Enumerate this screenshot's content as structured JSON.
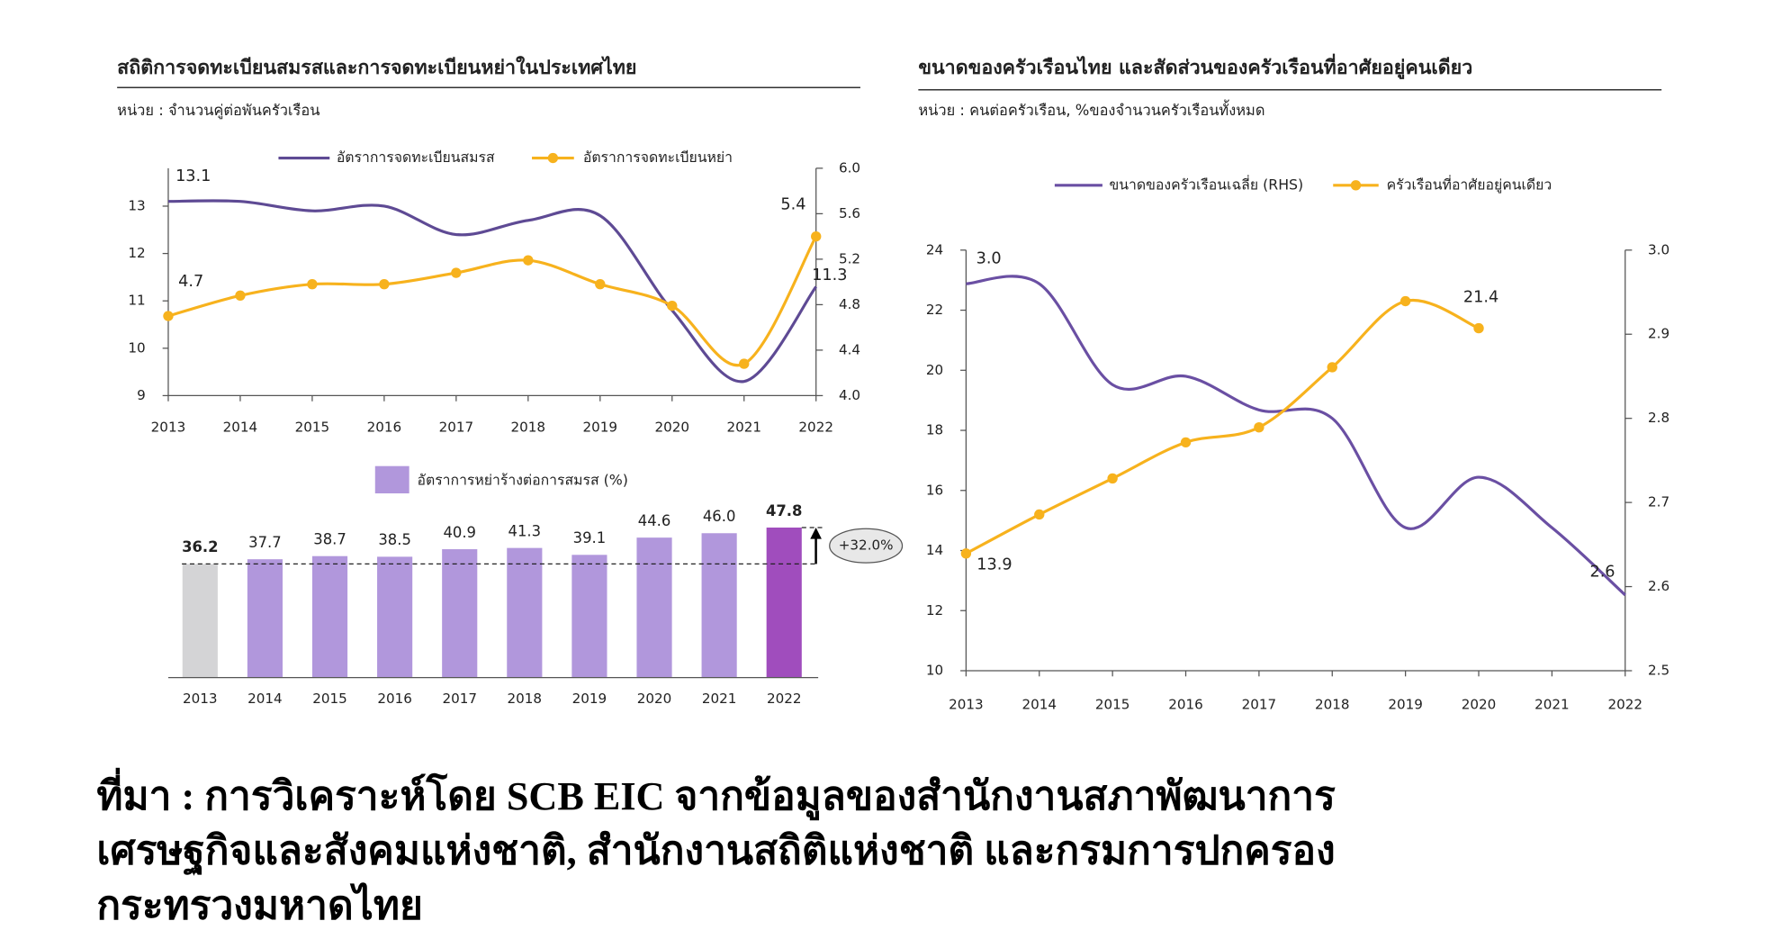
{
  "chart_data": [
    {
      "type": "line",
      "title": "สถิติการจดทะเบียนสมรสและการจดทะเบียนหย่าในประเทศไทย",
      "subtitle": "หน่วย : จำนวนคู่ต่อพันครัวเรือน",
      "categories": [
        "2013",
        "2014",
        "2015",
        "2016",
        "2017",
        "2018",
        "2019",
        "2020",
        "2021",
        "2022"
      ],
      "series": [
        {
          "name": "อัตราการจดทะเบียนสมรส",
          "color": "#5e4a94",
          "values": [
            13.1,
            13.1,
            12.9,
            13.0,
            12.4,
            12.7,
            12.8,
            10.8,
            9.3,
            11.3
          ],
          "value_labels": [
            "13.1",
            null,
            null,
            null,
            null,
            null,
            null,
            null,
            null,
            "11.3"
          ],
          "markers": false
        },
        {
          "name": "อัตราการจดทะเบียนหย่า",
          "color": "#f7b21d",
          "axis": "y2",
          "values": [
            4.7,
            4.88,
            4.98,
            4.98,
            5.08,
            5.19,
            4.98,
            4.79,
            4.28,
            5.4
          ],
          "value_labels": [
            "4.7",
            null,
            null,
            null,
            null,
            null,
            null,
            null,
            null,
            "5.4"
          ],
          "markers": true
        }
      ],
      "ylim": [
        9,
        13.8
      ],
      "yticks": [
        9,
        10,
        11,
        12,
        13
      ],
      "y2lim": [
        4.0,
        6.0
      ],
      "y2ticks": [
        {
          "value": 4.0,
          "label": "4.0"
        },
        4.4,
        4.8,
        5.2,
        5.6,
        {
          "value": 6.0,
          "label": "6.0"
        }
      ],
      "grid": false,
      "legend": "top"
    },
    {
      "type": "bar",
      "categories": [
        "2013",
        "2014",
        "2015",
        "2016",
        "2017",
        "2018",
        "2019",
        "2020",
        "2021",
        "2022"
      ],
      "series": [
        {
          "name": "อัตราการหย่าร้างต่อการสมรส (%)",
          "color": "#b197dc",
          "values": [
            36.2,
            37.7,
            38.7,
            38.5,
            40.9,
            41.3,
            39.1,
            44.6,
            46.0,
            47.8
          ],
          "value_labels": [
            "36.2",
            "37.7",
            "38.7",
            "38.5",
            "40.9",
            "41.3",
            "39.1",
            "44.6",
            "46.0",
            "47.8"
          ],
          "colors": [
            "#d4d4d6",
            "#b197dc",
            "#b197dc",
            "#b197dc",
            "#b197dc",
            "#b197dc",
            "#b197dc",
            "#b197dc",
            "#b197dc",
            "#a04dbd"
          ]
        }
      ],
      "annotation": "+32.0%",
      "legend": "top"
    },
    {
      "type": "line",
      "title": "ขนาดของครัวเรือนไทย และสัดส่วนของครัวเรือนที่อาศัยอยู่คนเดียว",
      "subtitle": "หน่วย : คนต่อครัวเรือน, %ของจำนวนครัวเรือนทั้งหมด",
      "categories": [
        "2013",
        "2014",
        "2015",
        "2016",
        "2017",
        "2018",
        "2019",
        "2020",
        "2021",
        "2022"
      ],
      "series": [
        {
          "name": "ขนาดของครัวเรือนเฉลี่ย (RHS)",
          "color": "#6a4fa3",
          "axis": "y2",
          "values": [
            2.96,
            2.96,
            2.84,
            2.85,
            2.81,
            2.8,
            2.67,
            2.73,
            2.67,
            2.59
          ],
          "value_labels": [
            "3.0",
            null,
            null,
            null,
            null,
            null,
            null,
            null,
            null,
            "2.6"
          ],
          "markers": false
        },
        {
          "name": "ครัวเรือนที่อาศัยอยู่คนเดียว",
          "color": "#f7b21d",
          "values": [
            13.9,
            15.2,
            16.4,
            17.6,
            18.1,
            20.1,
            22.3,
            21.4,
            null,
            null
          ],
          "value_labels": [
            "13.9",
            null,
            null,
            null,
            null,
            null,
            null,
            "21.4",
            null,
            null
          ],
          "markers": true
        }
      ],
      "ylim": [
        10,
        24
      ],
      "yticks": [
        10,
        12,
        14,
        16,
        18,
        20,
        22,
        24
      ],
      "y2lim": [
        2.5,
        3.0
      ],
      "y2ticks": [
        2.5,
        2.6,
        2.7,
        2.8,
        2.9,
        {
          "value": 3.0,
          "label": "3.0"
        }
      ],
      "grid": false,
      "legend": "top"
    }
  ],
  "source": [
    "ที่มา : การวิเคราะห์โดย SCB EIC จากข้อมูลของสำนักงานสภาพัฒนาการ",
    "เศรษฐกิจและสังคมแห่งชาติ, สำนักงานสถิติแห่งชาติ และกรมการปกครอง",
    "กระทรวงมหาดไทย"
  ]
}
